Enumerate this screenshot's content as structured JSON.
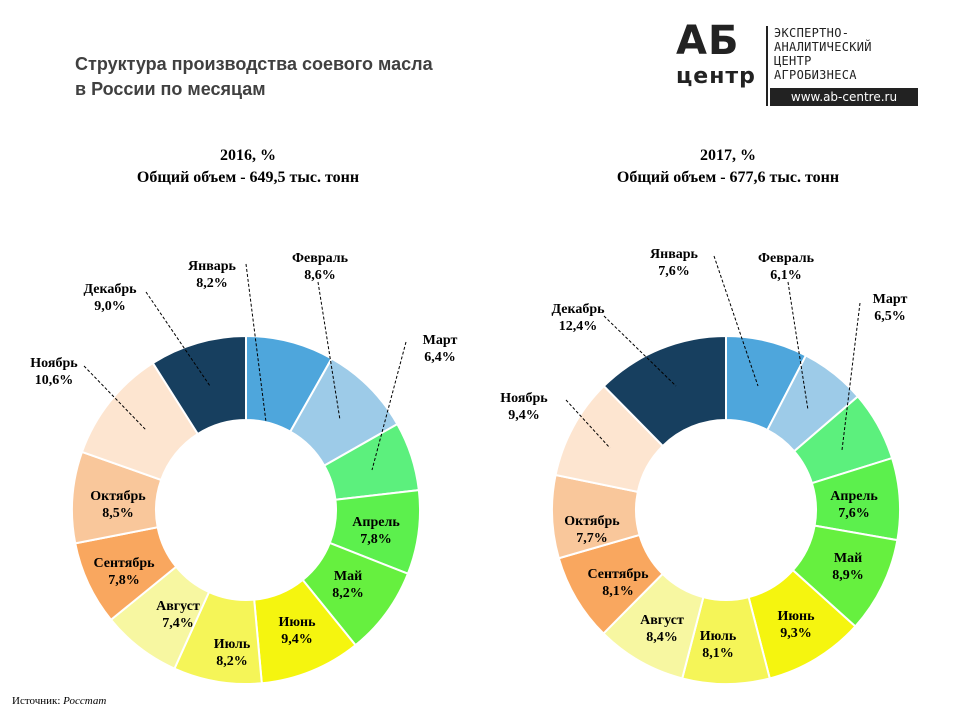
{
  "header": {
    "title_line1": "Структура производства соевого масла",
    "title_line2": "в России по месяцам"
  },
  "logo": {
    "mark_top": "АБ",
    "mark_bottom": "центр",
    "text_lines": [
      "ЭКСПЕРТНО-",
      "АНАЛИТИЧЕСКИЙ",
      "ЦЕНТР",
      "АГРОБИЗНЕСА"
    ],
    "url": "www.ab-centre.ru"
  },
  "source": {
    "label": "Источник:",
    "name": "Росстат"
  },
  "colors": {
    "january": "#4ea6dc",
    "february": "#9dcbe8",
    "march": "#5cf07d",
    "april": "#5cf04d",
    "may": "#66f03f",
    "june": "#f5f50f",
    "july": "#f5f558",
    "august": "#f7f7a1",
    "september": "#f9a75f",
    "october": "#f9c79b",
    "november": "#fde5d0",
    "december": "#173f5f"
  },
  "chart_data": [
    {
      "type": "pie",
      "title": "2016, %",
      "subtitle": "Общий объем - 649,5 тыс. тонн",
      "categories": [
        "Январь",
        "Февраль",
        "Март",
        "Апрель",
        "Май",
        "Июнь",
        "Июль",
        "Август",
        "Сентябрь",
        "Октябрь",
        "Ноябрь",
        "Декабрь"
      ],
      "values": [
        8.2,
        8.6,
        6.4,
        7.8,
        8.2,
        9.4,
        8.2,
        7.4,
        7.8,
        8.5,
        10.6,
        9.0
      ],
      "value_labels": [
        "8,2%",
        "8,6%",
        "6,4%",
        "7,8%",
        "8,2%",
        "9,4%",
        "8,2%",
        "7,4%",
        "7,8%",
        "8,5%",
        "10,6%",
        "9,0%"
      ],
      "legend": "none"
    },
    {
      "type": "pie",
      "title": "2017, %",
      "subtitle": "Общий объем - 677,6 тыс. тонн",
      "categories": [
        "Январь",
        "Февраль",
        "Март",
        "Апрель",
        "Май",
        "Июнь",
        "Июль",
        "Август",
        "Сентябрь",
        "Октябрь",
        "Ноябрь",
        "Декабрь"
      ],
      "values": [
        7.6,
        6.1,
        6.5,
        7.6,
        8.9,
        9.3,
        8.1,
        8.4,
        8.1,
        7.7,
        9.4,
        12.4
      ],
      "value_labels": [
        "7,6%",
        "6,1%",
        "6,5%",
        "7,6%",
        "8,9%",
        "9,3%",
        "8,1%",
        "8,4%",
        "8,1%",
        "7,7%",
        "9,4%",
        "12,4%"
      ],
      "legend": "none"
    }
  ]
}
